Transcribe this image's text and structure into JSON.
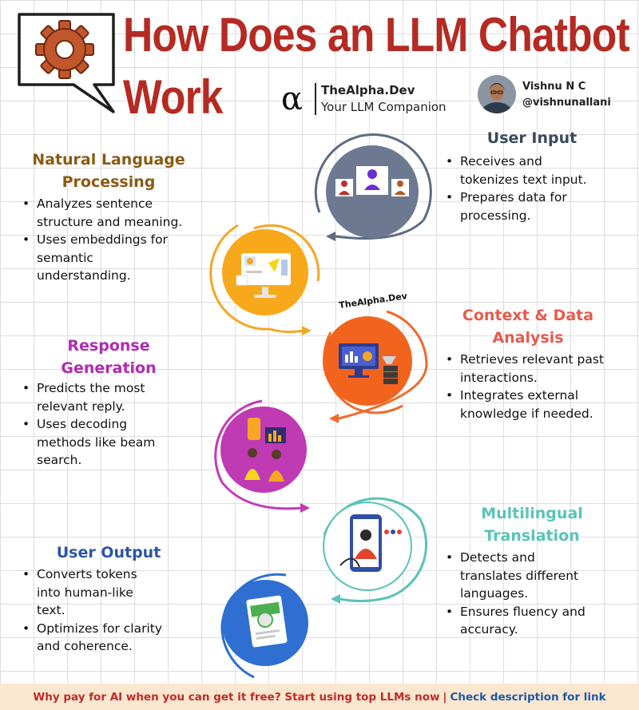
{
  "header": {
    "title_line1": "How Does an LLM Chatbot",
    "title_line2": "Work",
    "brand_name": "TheAlpha.Dev",
    "brand_tagline": "Your LLM Companion",
    "author_name": "Vishnu N C",
    "author_handle": "@vishnunallani"
  },
  "watermark": "TheAlpha.Dev",
  "steps": [
    {
      "title_lines": [
        "User Input"
      ],
      "color": "#3b4a5c",
      "bullets": [
        [
          "Receives and",
          "tokenizes text input."
        ],
        [
          "Prepares data for",
          "processing."
        ]
      ]
    },
    {
      "title_lines": [
        "Natural Language",
        "Processing"
      ],
      "color": "#8a5a12",
      "bullets": [
        [
          "Analyzes sentence",
          "structure and meaning."
        ],
        [
          "Uses embeddings for",
          "semantic",
          "understanding."
        ]
      ]
    },
    {
      "title_lines": [
        "Context & Data",
        "Analysis"
      ],
      "color": "#e85a4c",
      "bullets": [
        [
          "Retrieves relevant past",
          "interactions."
        ],
        [
          "Integrates external",
          "knowledge if needed."
        ]
      ]
    },
    {
      "title_lines": [
        "Response",
        "Generation"
      ],
      "color": "#b02ab0",
      "bullets": [
        [
          "Predicts the most",
          "relevant reply."
        ],
        [
          "Uses decoding",
          "methods like beam",
          "search."
        ]
      ]
    },
    {
      "title_lines": [
        "Multilingual",
        "Translation"
      ],
      "color": "#5ac3b7",
      "bullets": [
        [
          "Detects and",
          "translates different",
          "languages."
        ],
        [
          "Ensures fluency and",
          "accuracy."
        ]
      ]
    },
    {
      "title_lines": [
        "User Output"
      ],
      "color": "#2a55a8",
      "bullets": [
        [
          "Converts tokens",
          "into human-like",
          "text."
        ],
        [
          "Optimizes for clarity",
          "and coherence."
        ]
      ]
    }
  ],
  "footer": {
    "promo": "Why pay for AI when you can get it free? Start using top LLMs now",
    "separator": "|",
    "link": "Check description for link"
  }
}
